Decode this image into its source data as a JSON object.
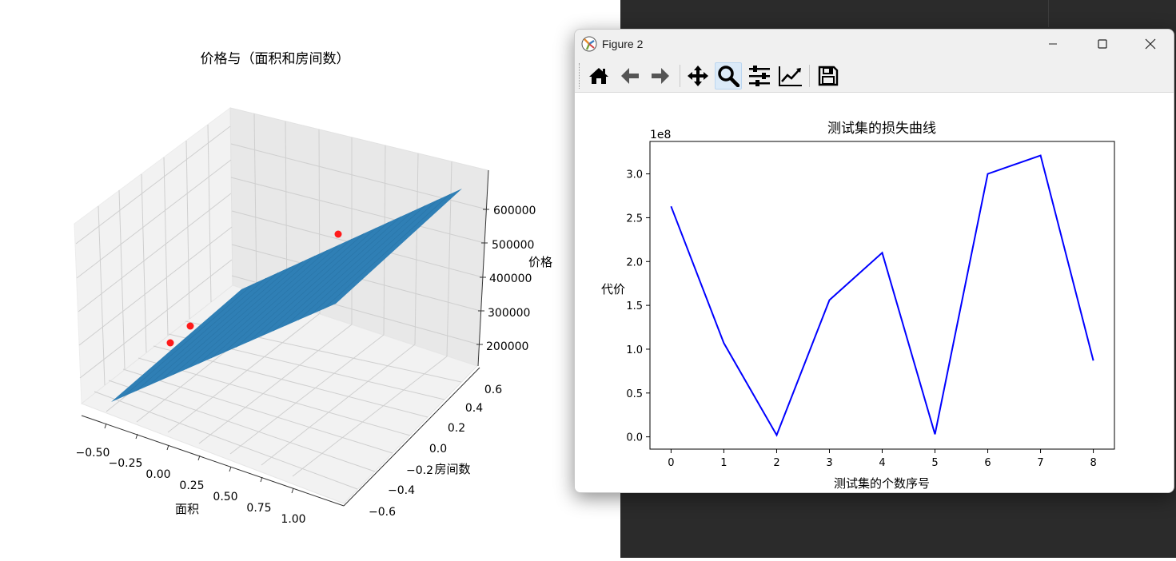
{
  "figure1": {
    "title": "价格与（面积和房间数）",
    "xlabel": "面积",
    "ylabel": "房间数",
    "zlabel": "价格",
    "x_ticks": [
      "−0.50",
      "−0.25",
      "0.00",
      "0.25",
      "0.50",
      "0.75",
      "1.00"
    ],
    "y_ticks": [
      "−0.6",
      "−0.4",
      "−0.2",
      "0.0",
      "0.2",
      "0.4",
      "0.6"
    ],
    "z_ticks": [
      "200000",
      "300000",
      "400000",
      "500000",
      "600000"
    ],
    "surface_color": "#2f7fb5",
    "point_color": "#ff1a1a"
  },
  "window": {
    "title": "Figure 2",
    "controls": {
      "minimize": "minimize-icon",
      "maximize": "maximize-icon",
      "close": "close-icon"
    },
    "toolbar": [
      "home-icon",
      "back-icon",
      "forward-icon",
      "pan-icon",
      "zoom-icon",
      "configure-subplots-icon",
      "edit-axis-icon",
      "save-icon"
    ]
  },
  "chart_data": {
    "type": "line",
    "title": "测试集的损失曲线",
    "xlabel": "测试集的个数序号",
    "ylabel": "代价",
    "y_offset_label": "1e8",
    "x": [
      0,
      1,
      2,
      3,
      4,
      5,
      6,
      7,
      8
    ],
    "series": [
      {
        "values": [
          2.63,
          1.07,
          0.02,
          1.56,
          2.1,
          0.03,
          3.0,
          3.21,
          0.87
        ],
        "color": "#0000ff"
      }
    ],
    "x_ticks": [
      "0",
      "1",
      "2",
      "3",
      "4",
      "5",
      "6",
      "7",
      "8"
    ],
    "y_ticks": [
      "0.0",
      "0.5",
      "1.0",
      "1.5",
      "2.0",
      "2.5",
      "3.0"
    ],
    "xlim": [
      -0.4,
      8.4
    ],
    "ylim": [
      -0.14,
      3.37
    ],
    "grid": false
  }
}
